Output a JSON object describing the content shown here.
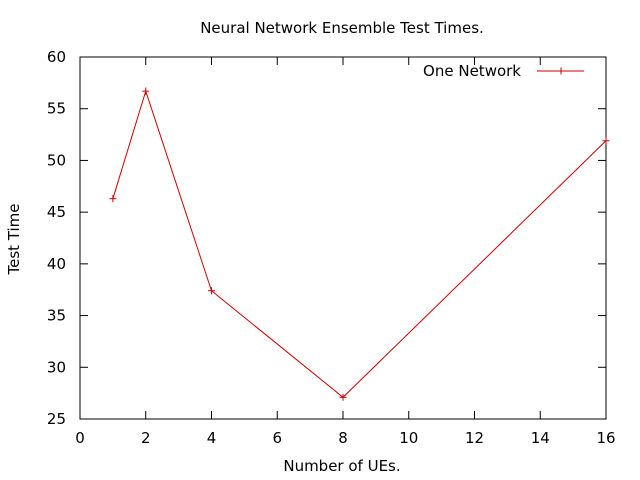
{
  "chart_data": {
    "type": "line",
    "title": "Neural Network Ensemble Test Times.",
    "xlabel": "Number of UEs.",
    "ylabel": "Test Time",
    "xlim": [
      0,
      16
    ],
    "ylim": [
      25,
      60
    ],
    "xticks": [
      0,
      2,
      4,
      6,
      8,
      10,
      12,
      14,
      16
    ],
    "yticks": [
      25,
      30,
      35,
      40,
      45,
      50,
      55,
      60
    ],
    "grid": false,
    "legend_position": "top-right",
    "series": [
      {
        "name": "One Network",
        "color": "#cc0000",
        "marker": "plus",
        "x": [
          1,
          2,
          4,
          8,
          16
        ],
        "y": [
          46.3,
          56.7,
          37.4,
          27.1,
          51.9
        ]
      }
    ]
  }
}
